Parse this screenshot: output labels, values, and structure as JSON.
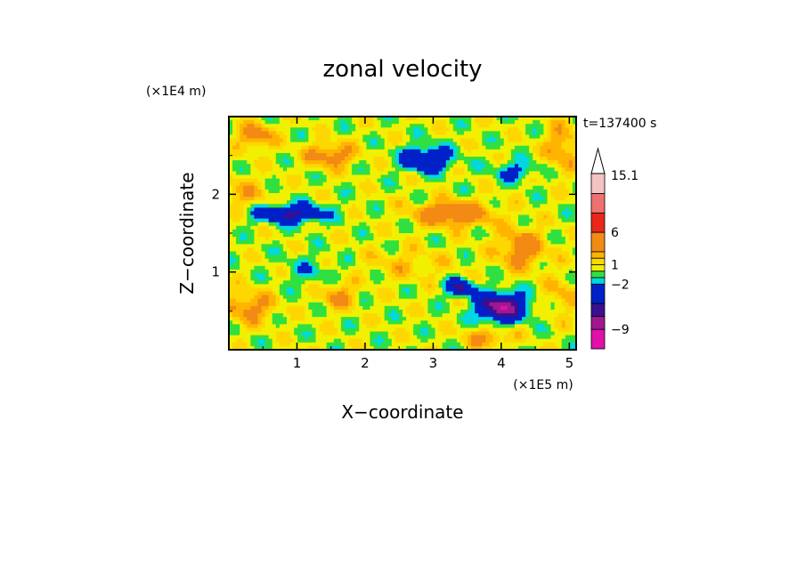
{
  "chart_data": {
    "type": "heatmap",
    "title": "zonal velocity",
    "xlabel": "X−coordinate",
    "ylabel": "Z−coordinate",
    "x_unit": "(×1E5 m)",
    "y_unit": "(×1E4 m)",
    "time_label": "t=137400 s",
    "xlim": [
      0,
      5.1
    ],
    "ylim": [
      0,
      3.0
    ],
    "x_ticks": [
      "1",
      "2",
      "3",
      "4",
      "5"
    ],
    "y_ticks": [
      "1",
      "2"
    ],
    "colorbar": {
      "labels": [
        "15.1",
        "6",
        "1",
        "−2",
        "−9"
      ],
      "levels": [
        {
          "min": 12,
          "max": 15.1,
          "color": "#f4c2c2"
        },
        {
          "min": 9,
          "max": 12,
          "color": "#f07070"
        },
        {
          "min": 6,
          "max": 9,
          "color": "#e8281a"
        },
        {
          "min": 3,
          "max": 6,
          "color": "#f28a14"
        },
        {
          "min": 2,
          "max": 3,
          "color": "#ffb400"
        },
        {
          "min": 1,
          "max": 2,
          "color": "#ffd700"
        },
        {
          "min": 0,
          "max": 1,
          "color": "#f0f000"
        },
        {
          "min": -1,
          "max": 0,
          "color": "#30e040"
        },
        {
          "min": -2,
          "max": -1,
          "color": "#00d8e0"
        },
        {
          "min": -5,
          "max": -2,
          "color": "#0020c8"
        },
        {
          "min": -7,
          "max": -5,
          "color": "#3a1090"
        },
        {
          "min": -9,
          "max": -7,
          "color": "#a01890"
        },
        {
          "min": -12,
          "max": -9,
          "color": "#e010a8"
        }
      ]
    },
    "field_features": [
      {
        "x": 4.0,
        "z": 0.55,
        "sx": 0.35,
        "sz": 0.18,
        "amp": -9
      },
      {
        "x": 3.4,
        "z": 0.8,
        "sx": 0.2,
        "sz": 0.1,
        "amp": -6
      },
      {
        "x": 2.9,
        "z": 2.45,
        "sx": 0.35,
        "sz": 0.15,
        "amp": -6
      },
      {
        "x": 0.9,
        "z": 1.75,
        "sx": 0.5,
        "sz": 0.12,
        "amp": -6
      },
      {
        "x": 4.2,
        "z": 2.3,
        "sx": 0.3,
        "sz": 0.12,
        "amp": -3
      },
      {
        "x": 3.3,
        "z": 1.75,
        "sx": 0.55,
        "sz": 0.16,
        "amp": 5
      },
      {
        "x": 4.3,
        "z": 1.3,
        "sx": 0.35,
        "sz": 0.25,
        "amp": 4
      },
      {
        "x": 1.5,
        "z": 2.5,
        "sx": 0.35,
        "sz": 0.15,
        "amp": 4
      },
      {
        "x": 0.3,
        "z": 0.55,
        "sx": 0.35,
        "sz": 0.2,
        "amp": 3.5
      },
      {
        "x": 1.6,
        "z": 0.7,
        "sx": 0.25,
        "sz": 0.18,
        "amp": 3
      },
      {
        "x": 3.8,
        "z": 0.15,
        "sx": 0.35,
        "sz": 0.12,
        "amp": 3
      },
      {
        "x": 2.6,
        "z": 1.1,
        "sx": 0.6,
        "sz": 0.2,
        "amp": 1.5
      },
      {
        "x": 1.2,
        "z": 1.0,
        "sx": 0.4,
        "sz": 0.2,
        "amp": -1.5
      },
      {
        "x": 0.2,
        "z": 2.0,
        "sx": 0.4,
        "sz": 0.2,
        "amp": 2
      },
      {
        "x": 4.9,
        "z": 2.6,
        "sx": 0.25,
        "sz": 0.3,
        "amp": 3
      },
      {
        "x": 4.9,
        "z": 0.7,
        "sx": 0.25,
        "sz": 0.25,
        "amp": 2
      },
      {
        "x": 0.4,
        "z": 2.75,
        "sx": 0.25,
        "sz": 0.15,
        "amp": 4
      }
    ]
  }
}
